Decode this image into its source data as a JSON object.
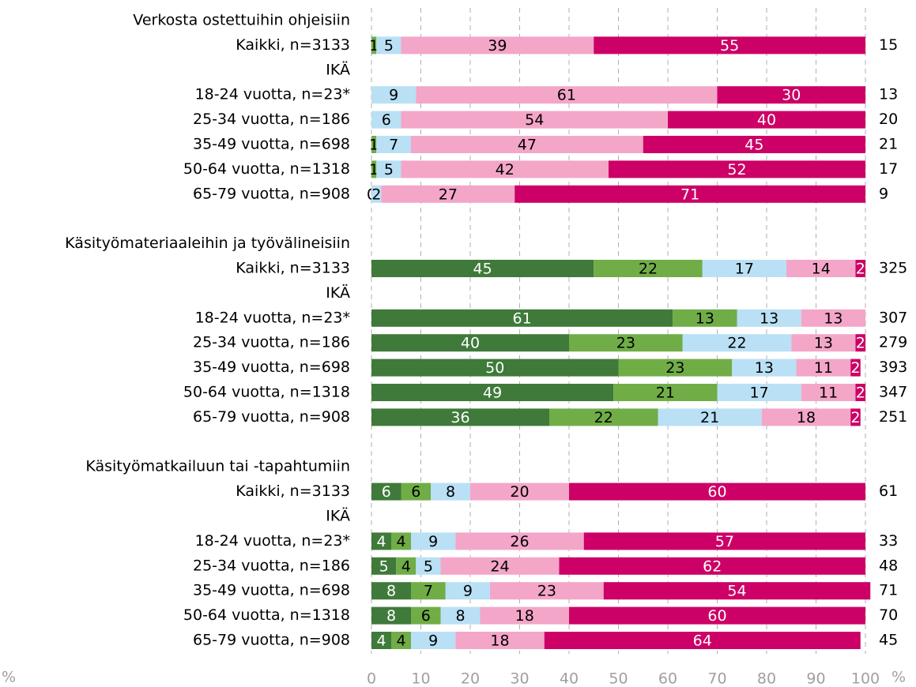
{
  "chart_data": {
    "type": "stacked-bar-horizontal",
    "colors": [
      "#3f7a3a",
      "#70ad47",
      "#b9e0f5",
      "#f4a6c8",
      "#cc0066"
    ],
    "xlim": [
      0,
      100
    ],
    "xticks": [
      0,
      10,
      20,
      30,
      40,
      50,
      60,
      70,
      80,
      90,
      100
    ],
    "x_unit_left": "%",
    "x_unit_right": "%",
    "grid": true,
    "groups": [
      {
        "title": "Verkosta ostettuihin ohjeisiin",
        "categories": [
          "Kaikki, n=3133",
          "IKÄ",
          "18-24 vuotta, n=23*",
          "25-34 vuotta, n=186",
          "35-49 vuotta, n=698",
          "50-64 vuotta, n=1318",
          "65-79 vuotta, n=908"
        ],
        "series": [
          {
            "values": [
              null,
              null,
              null,
              null,
              null,
              null,
              null
            ]
          },
          {
            "values": [
              1,
              null,
              null,
              null,
              1,
              1,
              0
            ]
          },
          {
            "values": [
              5,
              null,
              9,
              6,
              7,
              5,
              2
            ]
          },
          {
            "values": [
              39,
              null,
              61,
              54,
              47,
              42,
              27
            ]
          },
          {
            "values": [
              55,
              null,
              30,
              40,
              45,
              52,
              71
            ]
          }
        ],
        "side_values": [
          15,
          null,
          13,
          20,
          21,
          17,
          9
        ]
      },
      {
        "title": "Käsityömateriaaleihin ja työvälineisiin",
        "categories": [
          "Kaikki, n=3133",
          "IKÄ",
          "18-24 vuotta, n=23*",
          "25-34 vuotta, n=186",
          "35-49 vuotta, n=698",
          "50-64 vuotta, n=1318",
          "65-79 vuotta, n=908"
        ],
        "series": [
          {
            "values": [
              45,
              null,
              61,
              40,
              50,
              49,
              36
            ]
          },
          {
            "values": [
              22,
              null,
              13,
              23,
              23,
              21,
              22
            ]
          },
          {
            "values": [
              17,
              null,
              13,
              22,
              13,
              17,
              21
            ]
          },
          {
            "values": [
              14,
              null,
              13,
              13,
              11,
              11,
              18
            ]
          },
          {
            "values": [
              2,
              null,
              null,
              2,
              2,
              2,
              2
            ]
          }
        ],
        "side_values": [
          325,
          null,
          307,
          279,
          393,
          347,
          251
        ]
      },
      {
        "title": "Käsityömatkailuun tai -tapahtumiin",
        "categories": [
          "Kaikki, n=3133",
          "IKÄ",
          "18-24 vuotta, n=23*",
          "25-34 vuotta, n=186",
          "35-49 vuotta, n=698",
          "50-64 vuotta, n=1318",
          "65-79 vuotta, n=908"
        ],
        "series": [
          {
            "values": [
              6,
              null,
              4,
              5,
              8,
              8,
              4
            ]
          },
          {
            "values": [
              6,
              null,
              4,
              4,
              7,
              6,
              4
            ]
          },
          {
            "values": [
              8,
              null,
              9,
              5,
              9,
              8,
              9
            ]
          },
          {
            "values": [
              20,
              null,
              26,
              24,
              23,
              18,
              18
            ]
          },
          {
            "values": [
              60,
              null,
              57,
              62,
              54,
              60,
              64
            ]
          }
        ],
        "side_values": [
          61,
          null,
          33,
          48,
          71,
          70,
          45
        ]
      }
    ]
  }
}
